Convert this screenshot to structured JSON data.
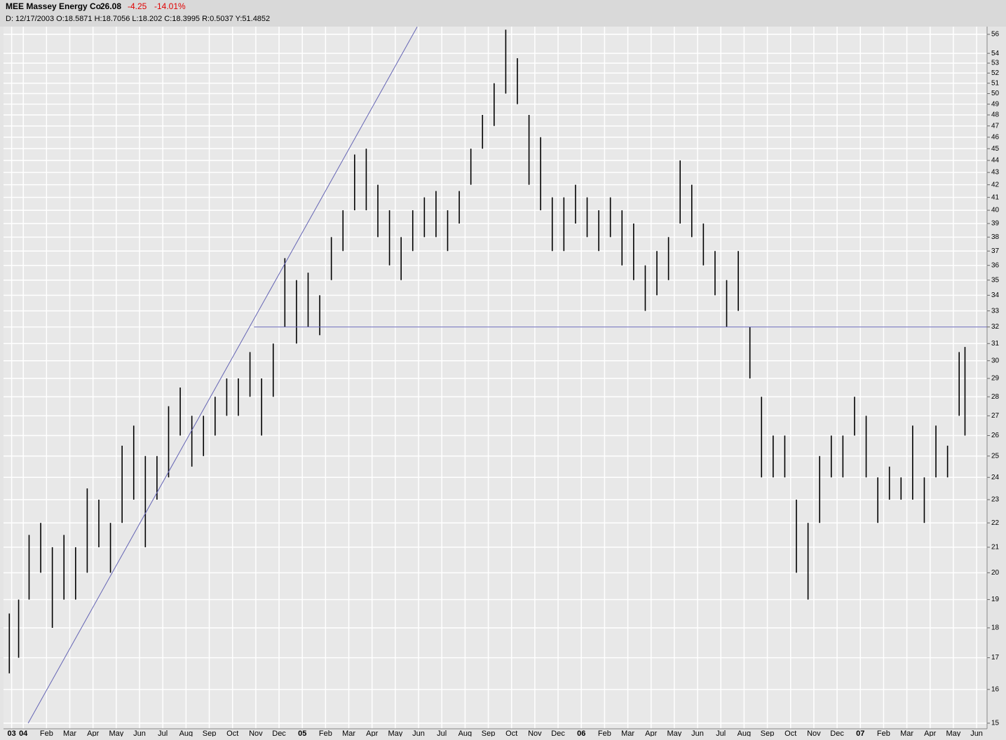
{
  "header": {
    "symbol": "MEE Massey Energy Co",
    "last": "26.08",
    "change": "-4.25",
    "change_pct": "-14.01%",
    "info": "D: 12/17/2003 O:18.5871 H:18.7056 L:18.202 C:18.3995 R:0.5037 Y:51.4852"
  },
  "chart_data": {
    "type": "hilo",
    "log_scale": true,
    "grid": true,
    "color": "#000000",
    "line_color": "#6464b4",
    "xlim": [
      -0.85,
      41.45
    ],
    "ylim": [
      14.84,
      56.83
    ],
    "yticks": [
      15,
      16,
      17,
      18,
      19,
      20,
      21,
      22,
      23,
      24,
      25,
      26,
      27,
      28,
      29,
      30,
      31,
      32,
      33,
      34,
      35,
      36,
      37,
      38,
      39,
      40,
      41,
      42,
      43,
      44,
      45,
      46,
      47,
      48,
      49,
      50,
      51,
      52,
      53,
      54,
      56
    ],
    "xticks": [
      {
        "value": -0.5,
        "label": "03"
      },
      {
        "value": 0,
        "label": "04"
      },
      {
        "value": 1,
        "label": "Feb"
      },
      {
        "value": 2,
        "label": "Mar"
      },
      {
        "value": 3,
        "label": "Apr"
      },
      {
        "value": 4,
        "label": "May"
      },
      {
        "value": 5,
        "label": "Jun"
      },
      {
        "value": 6,
        "label": "Jul"
      },
      {
        "value": 7,
        "label": "Aug"
      },
      {
        "value": 8,
        "label": "Sep"
      },
      {
        "value": 9,
        "label": "Oct"
      },
      {
        "value": 10,
        "label": "Nov"
      },
      {
        "value": 11,
        "label": "Dec"
      },
      {
        "value": 12,
        "label": "05"
      },
      {
        "value": 13,
        "label": "Feb"
      },
      {
        "value": 14,
        "label": "Mar"
      },
      {
        "value": 15,
        "label": "Apr"
      },
      {
        "value": 16,
        "label": "May"
      },
      {
        "value": 17,
        "label": "Jun"
      },
      {
        "value": 18,
        "label": "Jul"
      },
      {
        "value": 19,
        "label": "Aug"
      },
      {
        "value": 20,
        "label": "Sep"
      },
      {
        "value": 21,
        "label": "Oct"
      },
      {
        "value": 22,
        "label": "Nov"
      },
      {
        "value": 23,
        "label": "Dec"
      },
      {
        "value": 24,
        "label": "06"
      },
      {
        "value": 25,
        "label": "Feb"
      },
      {
        "value": 26,
        "label": "Mar"
      },
      {
        "value": 27,
        "label": "Apr"
      },
      {
        "value": 28,
        "label": "May"
      },
      {
        "value": 29,
        "label": "Jun"
      },
      {
        "value": 30,
        "label": "Jul"
      },
      {
        "value": 31,
        "label": "Aug"
      },
      {
        "value": 32,
        "label": "Sep"
      },
      {
        "value": 33,
        "label": "Oct"
      },
      {
        "value": 34,
        "label": "Nov"
      },
      {
        "value": 35,
        "label": "Dec"
      },
      {
        "value": 36,
        "label": "07"
      },
      {
        "value": 37,
        "label": "Feb"
      },
      {
        "value": 38,
        "label": "Mar"
      },
      {
        "value": 39,
        "label": "Apr"
      },
      {
        "value": 40,
        "label": "May"
      },
      {
        "value": 41,
        "label": "Jun"
      }
    ],
    "x": [
      -0.6,
      -0.2,
      0.25,
      0.75,
      1.25,
      1.75,
      2.25,
      2.75,
      3.25,
      3.75,
      4.25,
      4.75,
      5.25,
      5.75,
      6.25,
      6.75,
      7.25,
      7.75,
      8.25,
      8.75,
      9.25,
      9.75,
      10.25,
      10.75,
      11.25,
      11.75,
      12.25,
      12.75,
      13.25,
      13.75,
      14.25,
      14.75,
      15.25,
      15.75,
      16.25,
      16.75,
      17.25,
      17.75,
      18.25,
      18.75,
      19.25,
      19.75,
      20.25,
      20.75,
      21.25,
      21.75,
      22.25,
      22.75,
      23.25,
      23.75,
      24.25,
      24.75,
      25.25,
      25.75,
      26.25,
      26.75,
      27.25,
      27.75,
      28.25,
      28.75,
      29.25,
      29.75,
      30.25,
      30.75,
      31.25,
      31.75,
      32.25,
      32.75,
      33.25,
      33.75,
      34.25,
      34.75,
      35.25,
      35.75,
      36.25,
      36.75,
      37.25,
      37.75,
      38.25,
      38.75,
      39.25,
      39.75,
      40.25,
      40.5
    ],
    "high": [
      18.5,
      19,
      21.5,
      22,
      21,
      21.5,
      21,
      23.5,
      23,
      22,
      25.5,
      26.5,
      25,
      25,
      27.5,
      28.5,
      27,
      27,
      28,
      29,
      29,
      30.5,
      29,
      31,
      36.5,
      35,
      35.5,
      34,
      38,
      40,
      44.5,
      45,
      42,
      40,
      38,
      40,
      41,
      41.5,
      40,
      41.5,
      45,
      48,
      51,
      56.5,
      53.5,
      48,
      46,
      41,
      41,
      42,
      41,
      40,
      41,
      40,
      39,
      36,
      37,
      38,
      44,
      42,
      39,
      37,
      35,
      37,
      32,
      28,
      26,
      26,
      23,
      22,
      25,
      26,
      26,
      28,
      27,
      24,
      24.5,
      24,
      26.5,
      24,
      26.5,
      25.5,
      30.5,
      30.8
    ],
    "low": [
      16.5,
      17,
      19,
      20,
      18,
      19,
      19,
      20,
      21,
      20,
      22,
      23,
      21,
      23,
      24,
      26,
      24.5,
      25,
      26,
      27,
      27,
      28,
      26,
      28,
      32,
      31,
      32,
      31.5,
      35,
      37,
      40,
      40,
      38,
      36,
      35,
      37,
      38,
      38,
      37,
      39,
      42,
      45,
      47,
      50,
      49,
      42,
      40,
      37,
      37,
      39,
      38,
      37,
      38,
      36,
      35,
      33,
      34,
      35,
      39,
      38,
      36,
      34,
      32,
      33,
      29,
      24,
      24,
      24,
      20,
      19,
      22,
      24,
      24,
      26,
      24,
      22,
      23,
      23,
      23,
      22,
      24,
      24,
      27,
      26
    ],
    "trendlines": [
      {
        "x": [
          0.21,
          16.94
        ],
        "y": [
          15,
          56.8
        ]
      },
      {
        "x": [
          9.92,
          41.45
        ],
        "y": [
          32,
          32
        ]
      }
    ]
  }
}
